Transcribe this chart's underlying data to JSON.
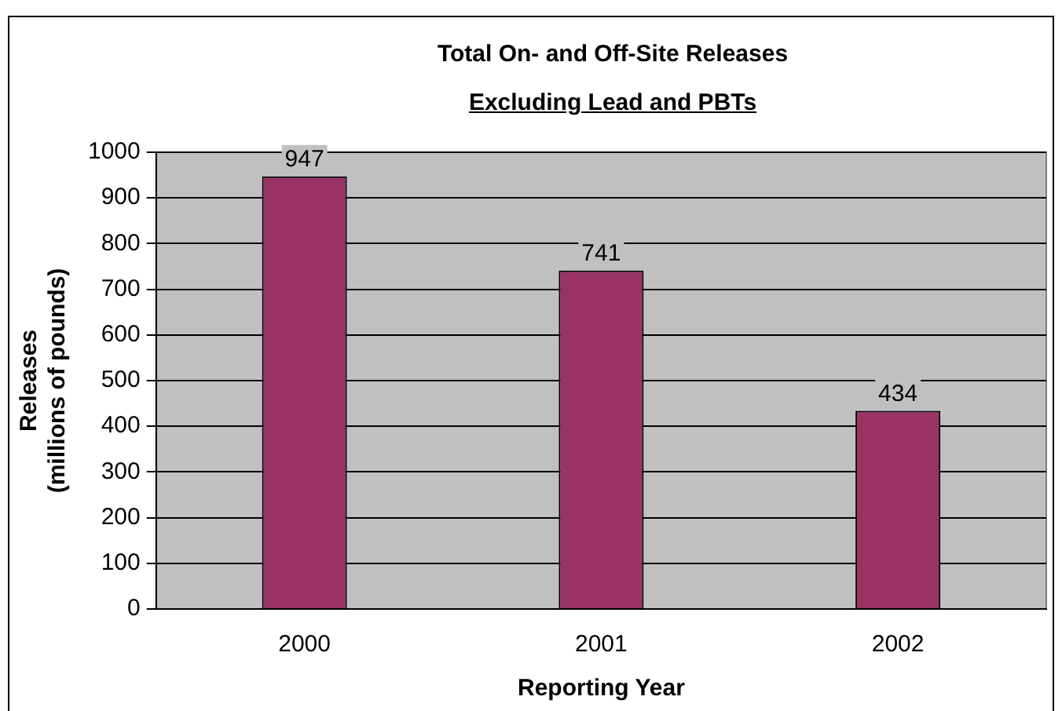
{
  "chart_data": {
    "type": "bar",
    "title": "Total On- and Off-Site Releases",
    "subtitle": "Excluding Lead and PBTs",
    "xlabel": "Reporting Year",
    "ylabel": "Releases\n(millions of pounds)",
    "categories": [
      "2000",
      "2001",
      "2002"
    ],
    "values": [
      947,
      741,
      434
    ],
    "color": "#993366",
    "ylim": [
      0,
      1000
    ],
    "yticks": [
      0,
      100,
      200,
      300,
      400,
      500,
      600,
      700,
      800,
      900,
      1000
    ],
    "grid": "y",
    "legend": false,
    "data_labels": true
  }
}
